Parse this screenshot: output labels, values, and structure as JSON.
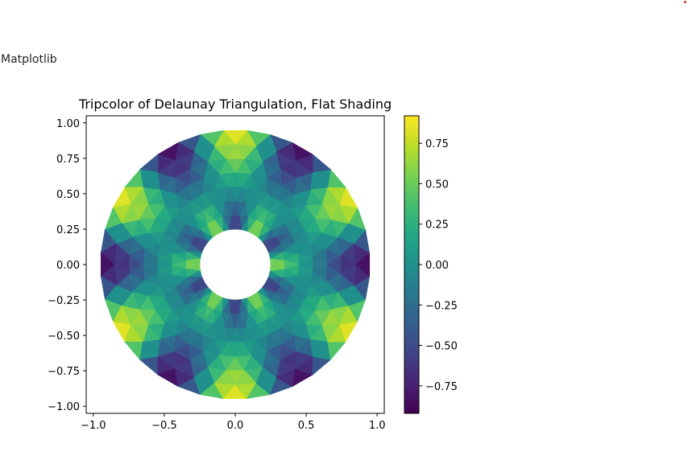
{
  "app": {
    "title": "Matplotlib"
  },
  "chart_data": {
    "type": "heatmap",
    "subtype": "tripcolor",
    "title": "Tripcolor of Delaunay Triangulation, Flat Shading",
    "xlabel": "",
    "ylabel": "",
    "xlim": [
      -1.05,
      1.05
    ],
    "ylim": [
      -1.05,
      1.05
    ],
    "x_ticks": [
      -1.0,
      -0.5,
      0.0,
      0.5,
      1.0
    ],
    "x_tick_labels": [
      "−1.0",
      "−0.5",
      "0.0",
      "0.5",
      "1.0"
    ],
    "y_ticks": [
      -1.0,
      -0.75,
      -0.5,
      -0.25,
      0.0,
      0.25,
      0.5,
      0.75,
      1.0
    ],
    "y_tick_labels": [
      "−1.00",
      "−0.75",
      "−0.50",
      "−0.25",
      "0.00",
      "0.25",
      "0.50",
      "0.75",
      "1.00"
    ],
    "mesh": {
      "inner_radius": 0.25,
      "outer_radius": 0.95,
      "n_radii": 8,
      "n_angles": 36,
      "value_function": "cos(6*angle) * cos(3*radius) (rings rotated by half step)"
    },
    "colorbar": {
      "cmap": "viridis",
      "vmin": -0.92,
      "vmax": 0.92,
      "ticks": [
        -0.75,
        -0.5,
        -0.25,
        0.0,
        0.25,
        0.5,
        0.75
      ],
      "tick_labels": [
        "−0.75",
        "−0.50",
        "−0.25",
        "0.00",
        "0.25",
        "0.50",
        "0.75"
      ]
    },
    "grid": false,
    "legend": "none"
  }
}
